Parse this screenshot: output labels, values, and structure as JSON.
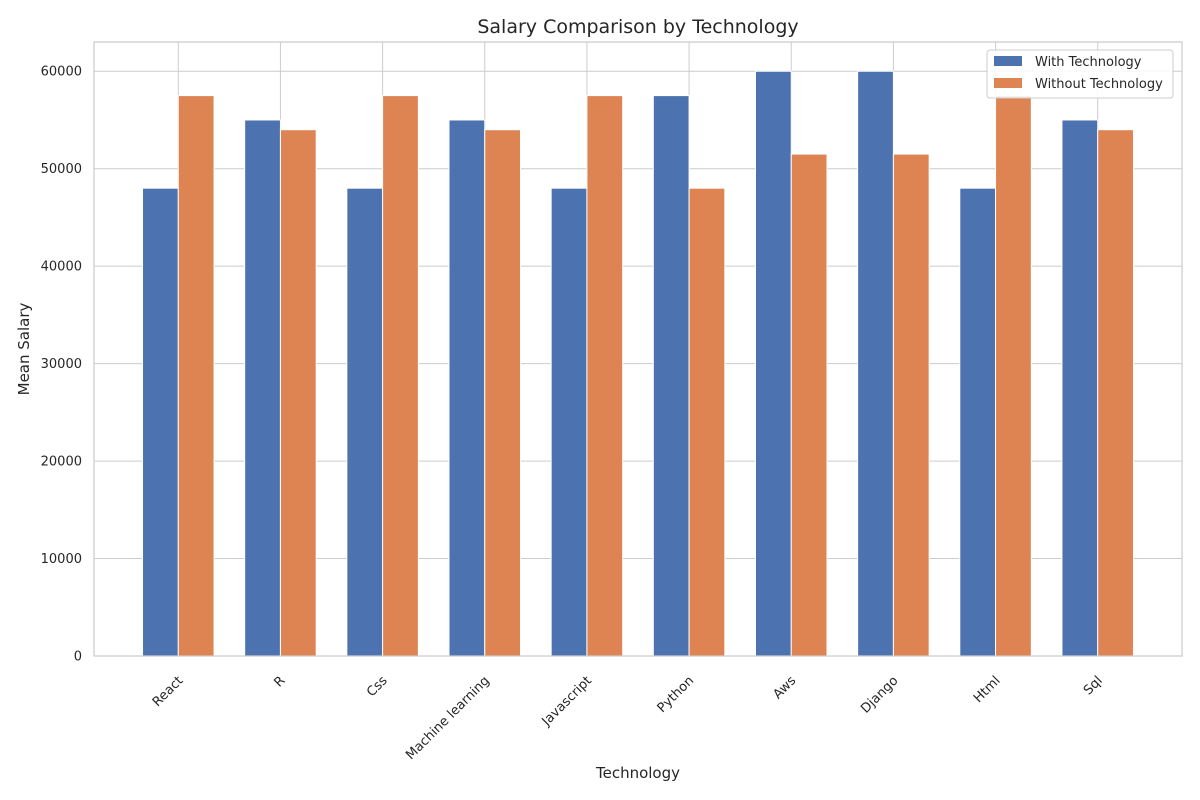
{
  "chart_data": {
    "type": "bar",
    "title": "Salary Comparison by Technology",
    "xlabel": "Technology",
    "ylabel": "Mean Salary",
    "categories": [
      "React",
      "R",
      "Css",
      "Machine learning",
      "Javascript",
      "Python",
      "Aws",
      "Django",
      "Html",
      "Sql"
    ],
    "series": [
      {
        "name": "With Technology",
        "color": "#4c72b0",
        "values": [
          48000,
          55000,
          48000,
          55000,
          48000,
          57500,
          60000,
          60000,
          48000,
          55000
        ]
      },
      {
        "name": "Without Technology",
        "color": "#dd8452",
        "values": [
          57500,
          54000,
          57500,
          54000,
          57500,
          48000,
          51500,
          51500,
          57500,
          54000
        ]
      }
    ],
    "ylim": [
      0,
      63000
    ],
    "yticks": [
      0,
      10000,
      20000,
      30000,
      40000,
      50000,
      60000
    ],
    "grid": true,
    "legend": "top-right"
  }
}
